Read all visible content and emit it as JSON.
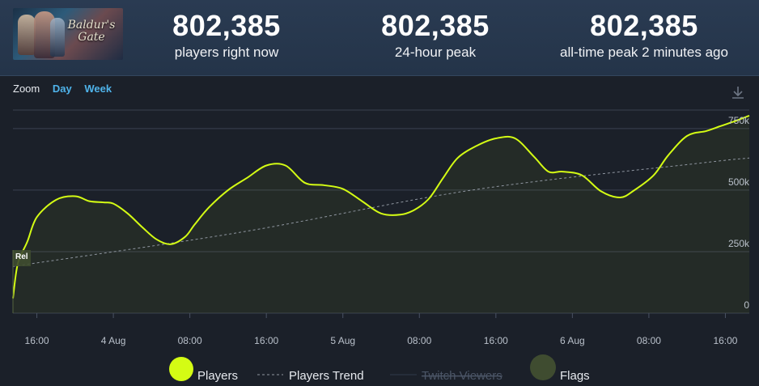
{
  "header": {
    "game_logo_text": "Baldur's Gate",
    "stats": [
      {
        "value": "802,385",
        "label": "players right now"
      },
      {
        "value": "802,385",
        "label": "24-hour peak"
      },
      {
        "value": "802,385",
        "label": "all-time peak 2 minutes ago"
      }
    ]
  },
  "toolbar": {
    "zoom_label": "Zoom",
    "day_label": "Day",
    "week_label": "Week",
    "download_icon": "download-icon"
  },
  "colors": {
    "players": "#d4fc14",
    "trend": "#8f96a0",
    "twitch": "#2f3a4c",
    "flags": "#3f4c30",
    "grid": "#3a4150",
    "background": "#1b2029"
  },
  "chart_data": {
    "type": "line",
    "x_axis_type": "datetime",
    "x_range": [
      "2023-08-03 13:30",
      "2023-08-06 18:30"
    ],
    "x_ticks": [
      "16:00",
      "4 Aug",
      "08:00",
      "16:00",
      "5 Aug",
      "08:00",
      "16:00",
      "6 Aug",
      "08:00",
      "16:00"
    ],
    "y_ticks": [
      "0",
      "250k",
      "500k",
      "750k"
    ],
    "ylim": [
      0,
      825000
    ],
    "grid": true,
    "legend": {
      "placement": "bottom",
      "items": [
        "Players",
        "Players Trend",
        "Twitch Viewers",
        "Flags"
      ],
      "disabled": [
        "Twitch Viewers"
      ]
    },
    "series": [
      {
        "name": "Players",
        "x": [
          "2023-08-03 13:30",
          "2023-08-03 14:00",
          "2023-08-03 15:00",
          "2023-08-03 16:00",
          "2023-08-03 18:00",
          "2023-08-03 20:00",
          "2023-08-03 21:30",
          "2023-08-03 23:00",
          "2023-08-04 00:00",
          "2023-08-04 01:30",
          "2023-08-04 03:00",
          "2023-08-04 04:30",
          "2023-08-04 06:00",
          "2023-08-04 07:30",
          "2023-08-04 08:30",
          "2023-08-04 10:00",
          "2023-08-04 12:00",
          "2023-08-04 14:00",
          "2023-08-04 16:00",
          "2023-08-04 18:00",
          "2023-08-04 20:00",
          "2023-08-04 22:00",
          "2023-08-05 00:00",
          "2023-08-05 02:00",
          "2023-08-05 04:00",
          "2023-08-05 06:00",
          "2023-08-05 07:30",
          "2023-08-05 09:00",
          "2023-08-05 10:30",
          "2023-08-05 12:00",
          "2023-08-05 14:00",
          "2023-08-05 16:00",
          "2023-08-05 18:00",
          "2023-08-05 20:00",
          "2023-08-05 21:30",
          "2023-08-05 23:00",
          "2023-08-06 01:00",
          "2023-08-06 03:00",
          "2023-08-06 05:00",
          "2023-08-06 06:30",
          "2023-08-06 08:30",
          "2023-08-06 10:00",
          "2023-08-06 12:00",
          "2023-08-06 14:00",
          "2023-08-06 15:30",
          "2023-08-06 17:00",
          "2023-08-06 18:30"
        ],
        "y": [
          60000,
          200000,
          290000,
          390000,
          460000,
          475000,
          455000,
          450000,
          445000,
          405000,
          350000,
          300000,
          280000,
          310000,
          360000,
          430000,
          500000,
          550000,
          600000,
          600000,
          530000,
          520000,
          505000,
          455000,
          405000,
          400000,
          420000,
          465000,
          550000,
          630000,
          680000,
          710000,
          710000,
          635000,
          575000,
          575000,
          560000,
          495000,
          470000,
          500000,
          560000,
          640000,
          720000,
          740000,
          760000,
          780000,
          802385
        ]
      },
      {
        "name": "Players Trend",
        "x": [
          "2023-08-03 13:30",
          "2023-08-04 13:30",
          "2023-08-05 13:30",
          "2023-08-06 13:30",
          "2023-08-06 18:30"
        ],
        "y": [
          190000,
          330000,
          500000,
          610000,
          630000
        ]
      }
    ],
    "flags": [
      {
        "x": "2023-08-03 13:30",
        "label": "Rel"
      }
    ]
  }
}
